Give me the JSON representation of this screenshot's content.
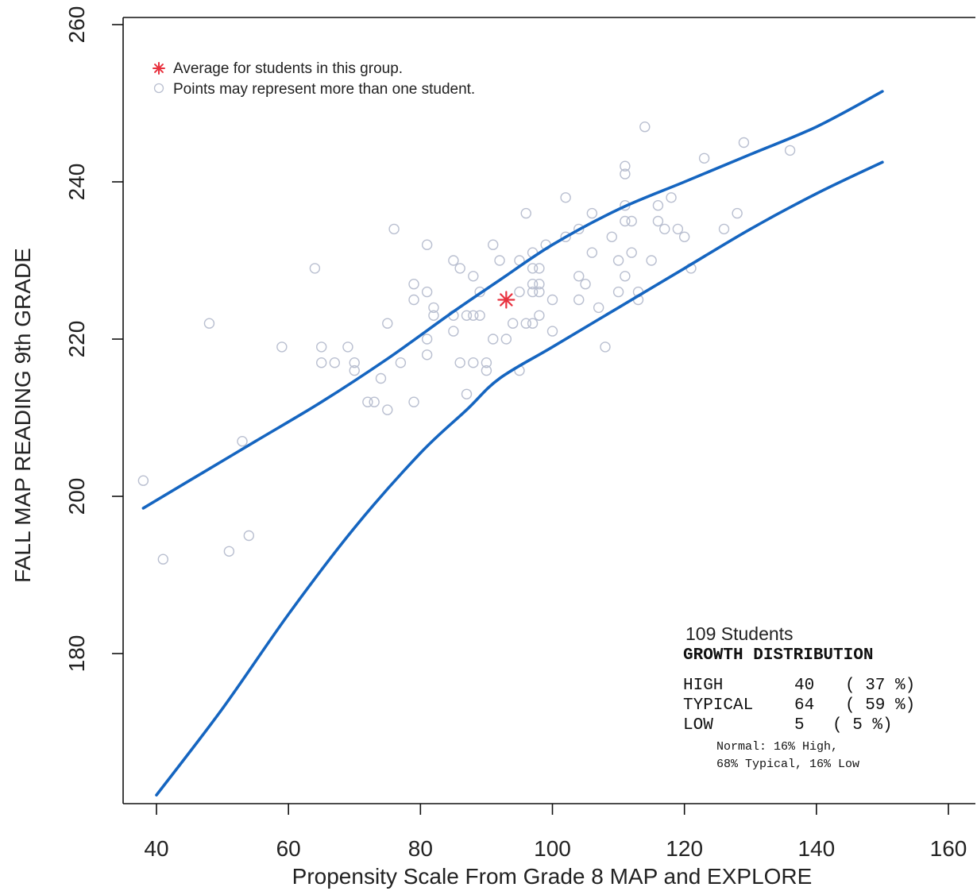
{
  "chart_data": {
    "type": "scatter",
    "xlabel": "Propensity Scale From Grade 8 MAP and EXPLORE",
    "ylabel": "FALL MAP READING 9th GRADE",
    "xlim": [
      35,
      162
    ],
    "ylim": [
      161,
      260
    ],
    "xticks": [
      40,
      60,
      80,
      100,
      120,
      140,
      160
    ],
    "yticks": [
      180,
      200,
      220,
      240,
      260
    ],
    "grid": false,
    "legend": {
      "placement": "top-left",
      "average_label": "Average for students in this group.",
      "points_label": "Points may represent more than one student."
    },
    "average": {
      "x": 93,
      "y": 225
    },
    "points": [
      [
        38,
        202
      ],
      [
        41,
        192
      ],
      [
        48,
        222
      ],
      [
        51,
        193
      ],
      [
        53,
        207
      ],
      [
        54,
        195
      ],
      [
        59,
        219
      ],
      [
        64,
        229
      ],
      [
        65,
        219
      ],
      [
        65,
        217
      ],
      [
        67,
        217
      ],
      [
        69,
        219
      ],
      [
        70,
        217
      ],
      [
        70,
        216
      ],
      [
        72,
        212
      ],
      [
        73,
        212
      ],
      [
        74,
        215
      ],
      [
        75,
        222
      ],
      [
        75,
        211
      ],
      [
        76,
        234
      ],
      [
        77,
        217
      ],
      [
        79,
        227
      ],
      [
        79,
        225
      ],
      [
        79,
        212
      ],
      [
        81,
        232
      ],
      [
        81,
        226
      ],
      [
        81,
        220
      ],
      [
        81,
        218
      ],
      [
        82,
        224
      ],
      [
        82,
        223
      ],
      [
        85,
        230
      ],
      [
        85,
        223
      ],
      [
        85,
        221
      ],
      [
        86,
        229
      ],
      [
        86,
        217
      ],
      [
        87,
        223
      ],
      [
        87,
        213
      ],
      [
        88,
        228
      ],
      [
        88,
        223
      ],
      [
        88,
        217
      ],
      [
        89,
        226
      ],
      [
        89,
        223
      ],
      [
        90,
        217
      ],
      [
        90,
        216
      ],
      [
        91,
        232
      ],
      [
        91,
        220
      ],
      [
        92,
        230
      ],
      [
        93,
        220
      ],
      [
        94,
        222
      ],
      [
        95,
        230
      ],
      [
        95,
        226
      ],
      [
        95,
        216
      ],
      [
        96,
        236
      ],
      [
        96,
        222
      ],
      [
        97,
        231
      ],
      [
        97,
        229
      ],
      [
        97,
        227
      ],
      [
        97,
        226
      ],
      [
        97,
        222
      ],
      [
        98,
        229
      ],
      [
        98,
        227
      ],
      [
        98,
        226
      ],
      [
        98,
        223
      ],
      [
        99,
        232
      ],
      [
        100,
        225
      ],
      [
        100,
        221
      ],
      [
        102,
        238
      ],
      [
        102,
        233
      ],
      [
        104,
        234
      ],
      [
        104,
        228
      ],
      [
        104,
        225
      ],
      [
        105,
        227
      ],
      [
        106,
        236
      ],
      [
        106,
        231
      ],
      [
        107,
        224
      ],
      [
        108,
        219
      ],
      [
        109,
        233
      ],
      [
        110,
        230
      ],
      [
        110,
        226
      ],
      [
        111,
        242
      ],
      [
        111,
        241
      ],
      [
        111,
        237
      ],
      [
        111,
        235
      ],
      [
        111,
        228
      ],
      [
        112,
        235
      ],
      [
        112,
        231
      ],
      [
        113,
        226
      ],
      [
        113,
        225
      ],
      [
        114,
        247
      ],
      [
        115,
        230
      ],
      [
        116,
        237
      ],
      [
        116,
        235
      ],
      [
        117,
        234
      ],
      [
        118,
        238
      ],
      [
        119,
        234
      ],
      [
        120,
        233
      ],
      [
        121,
        229
      ],
      [
        123,
        243
      ],
      [
        126,
        234
      ],
      [
        128,
        236
      ],
      [
        129,
        245
      ],
      [
        136,
        244
      ]
    ],
    "series": [
      {
        "values": [
          [
            38,
            198.5
          ],
          [
            45,
            202
          ],
          [
            55,
            207
          ],
          [
            65,
            212
          ],
          [
            75,
            217.5
          ],
          [
            85,
            223.5
          ],
          [
            92,
            227.5
          ],
          [
            100,
            232
          ],
          [
            110,
            236.5
          ],
          [
            120,
            240
          ],
          [
            130,
            243.5
          ],
          [
            140,
            247
          ],
          [
            150,
            251.5
          ]
        ]
      },
      {
        "values": [
          [
            40,
            162
          ],
          [
            50,
            173
          ],
          [
            60,
            185
          ],
          [
            70,
            196
          ],
          [
            80,
            205.5
          ],
          [
            87,
            211
          ],
          [
            92,
            215
          ],
          [
            100,
            219
          ],
          [
            110,
            224
          ],
          [
            120,
            229
          ],
          [
            130,
            234
          ],
          [
            140,
            238.5
          ],
          [
            150,
            242.5
          ]
        ]
      }
    ],
    "growth_box": {
      "students": "109 Students",
      "heading": "GROWTH DISTRIBUTION",
      "rows": [
        {
          "label": "HIGH",
          "count": "40",
          "pct": "( 37 %)"
        },
        {
          "label": "TYPICAL",
          "count": "64",
          "pct": "( 59 %)"
        },
        {
          "label": "LOW",
          "count": "5",
          "pct": "( 5 %)"
        }
      ],
      "note_line1": "Normal: 16% High,",
      "note_line2": "68% Typical, 16% Low"
    },
    "colors": {
      "band": "#1565c0",
      "average": "#e8323f",
      "points": "#b9bfd0",
      "axis": "#111111"
    }
  }
}
